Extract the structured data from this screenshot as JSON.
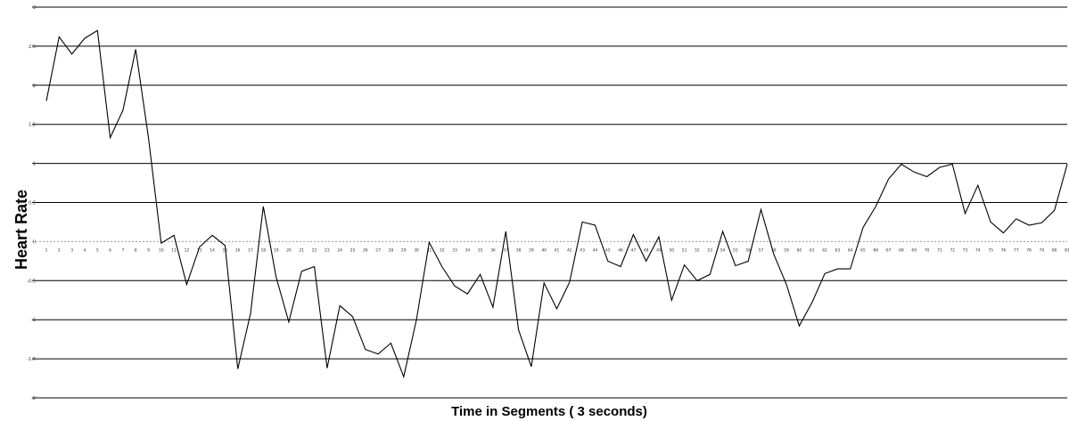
{
  "chart_data": {
    "type": "line",
    "title": "",
    "xlabel": "Time in Segments ( 3 seconds)",
    "ylabel": "Heart Rate",
    "ylim": [
      -2,
      3
    ],
    "yticks": [
      "-2",
      "-1.5",
      "-1",
      "-0.5",
      "0",
      "0.5",
      "1",
      "1.5",
      "2",
      "2.5",
      "3"
    ],
    "grid": true,
    "x": [
      1,
      2,
      3,
      4,
      5,
      6,
      7,
      8,
      9,
      10,
      11,
      12,
      13,
      14,
      15,
      16,
      17,
      18,
      19,
      20,
      21,
      22,
      23,
      24,
      25,
      26,
      27,
      28,
      29,
      30,
      31,
      32,
      33,
      34,
      35,
      36,
      37,
      38,
      39,
      40,
      41,
      42,
      43,
      44,
      45,
      46,
      47,
      48,
      49,
      50,
      51,
      52,
      53,
      54,
      55,
      56,
      57,
      58,
      59,
      60,
      61,
      62,
      63,
      64,
      65,
      66,
      67,
      68,
      69,
      70,
      71,
      72,
      73,
      74,
      75,
      76,
      77,
      78,
      79,
      80,
      81
    ],
    "series": [
      {
        "values": [
          1.8,
          2.62,
          2.4,
          2.6,
          2.7,
          1.33,
          1.68,
          2.46,
          1.33,
          -0.02,
          0.08,
          -0.55,
          -0.07,
          0.08,
          -0.05,
          -1.63,
          -0.92,
          0.45,
          -0.45,
          -1.03,
          -0.38,
          -0.32,
          -1.62,
          -0.82,
          -0.96,
          -1.38,
          -1.44,
          -1.3,
          -1.73,
          -1.0,
          -0.01,
          -0.32,
          -0.57,
          -0.67,
          -0.42,
          -0.84,
          0.13,
          -1.13,
          -1.6,
          -0.53,
          -0.86,
          -0.52,
          0.25,
          0.21,
          -0.25,
          -0.32,
          0.09,
          -0.25,
          0.06,
          -0.75,
          -0.3,
          -0.5,
          -0.42,
          0.13,
          -0.31,
          -0.25,
          0.41,
          -0.16,
          -0.55,
          -1.08,
          -0.78,
          -0.41,
          -0.35,
          -0.35,
          0.18,
          0.45,
          0.8,
          0.99,
          0.89,
          0.83,
          0.95,
          0.99,
          0.36,
          0.72,
          0.25,
          0.11,
          0.29,
          0.21,
          0.24,
          0.4,
          0.99
        ]
      }
    ]
  }
}
